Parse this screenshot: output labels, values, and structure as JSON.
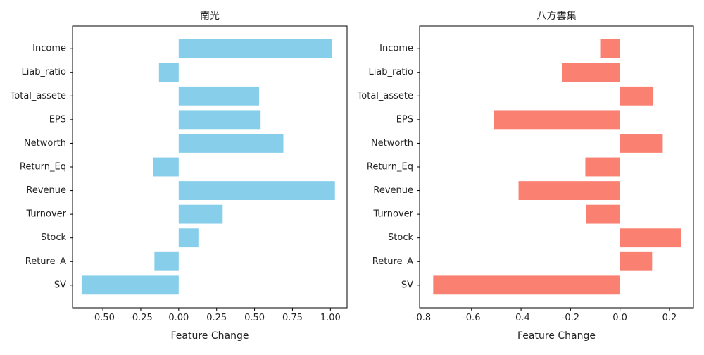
{
  "chart_data": [
    {
      "type": "bar",
      "orientation": "horizontal",
      "title": "南光",
      "xlabel": "Feature Change",
      "ylabel": "",
      "color": "#87CEEB",
      "xlim": [
        -0.7,
        1.11
      ],
      "xticks": [
        "-0.50",
        "-0.25",
        "0.00",
        "0.25",
        "0.50",
        "0.75",
        "1.00"
      ],
      "categories": [
        "Income",
        "Liab_ratio",
        "Total_assete",
        "EPS",
        "Networth",
        "Return_Eq",
        "Revenue",
        "Turnover",
        "Stock",
        "Reture_A",
        "SV"
      ],
      "values": [
        1.01,
        -0.13,
        0.53,
        0.54,
        0.69,
        -0.17,
        1.03,
        0.29,
        0.13,
        -0.16,
        -0.64
      ],
      "grid": false,
      "legend": "none"
    },
    {
      "type": "bar",
      "orientation": "horizontal",
      "title": "八方雲集",
      "xlabel": "Feature Change",
      "ylabel": "",
      "color": "#FA8072",
      "xlim": [
        -0.81,
        0.297
      ],
      "xticks": [
        "-0.8",
        "-0.6",
        "-0.4",
        "-0.2",
        "0.0",
        "0.2"
      ],
      "categories": [
        "Income",
        "Liab_ratio",
        "Total_assete",
        "EPS",
        "Networth",
        "Return_Eq",
        "Revenue",
        "Turnover",
        "Stock",
        "Reture_A",
        "SV"
      ],
      "values": [
        -0.08,
        -0.235,
        0.135,
        -0.51,
        0.173,
        -0.14,
        -0.41,
        -0.137,
        0.246,
        0.13,
        -0.755
      ],
      "grid": false,
      "legend": "none"
    }
  ]
}
